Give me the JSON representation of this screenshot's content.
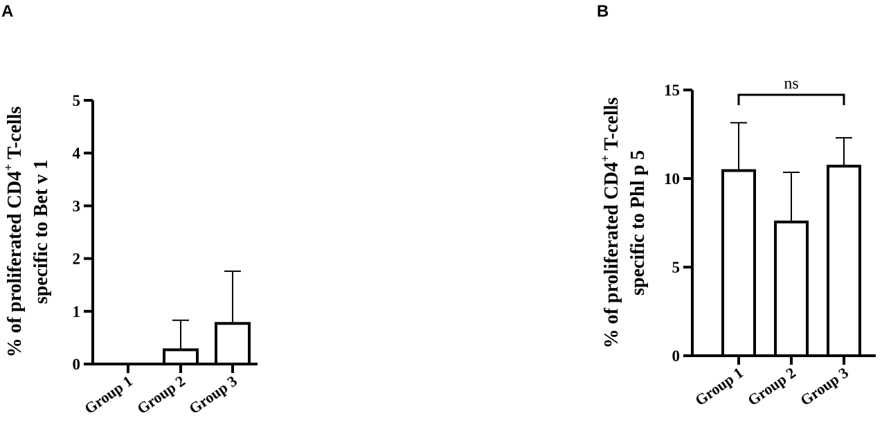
{
  "chart_data": [
    {
      "panel": "A",
      "type": "bar",
      "categories": [
        "Group 1",
        "Group 2",
        "Group 3"
      ],
      "values": [
        0,
        0.27,
        0.77
      ],
      "error": [
        0,
        0.56,
        0.99
      ],
      "ylabel_line1_pre": "% of proliferated CD4",
      "ylabel_line1_sup": "+",
      "ylabel_line1_post": " T-cells",
      "ylabel_line2": "specific to Bet v 1",
      "ylim": [
        0,
        5
      ],
      "yticks": [
        0,
        1,
        2,
        3,
        4,
        5
      ],
      "grid": false,
      "annotations": []
    },
    {
      "panel": "B",
      "type": "bar",
      "categories": [
        "Group 1",
        "Group 2",
        "Group 3"
      ],
      "values": [
        10.45,
        7.55,
        10.7
      ],
      "error": [
        2.7,
        2.8,
        1.6
      ],
      "ylabel_line1_pre": "% of proliferated CD4",
      "ylabel_line1_sup": "+",
      "ylabel_line1_post": " T-cells",
      "ylabel_line2": "specific to Phl p 5",
      "ylim": [
        0,
        15
      ],
      "yticks": [
        0,
        5,
        10,
        15
      ],
      "grid": false,
      "annotations": [
        {
          "text": "ns",
          "from": 0,
          "to": 2
        }
      ]
    }
  ]
}
